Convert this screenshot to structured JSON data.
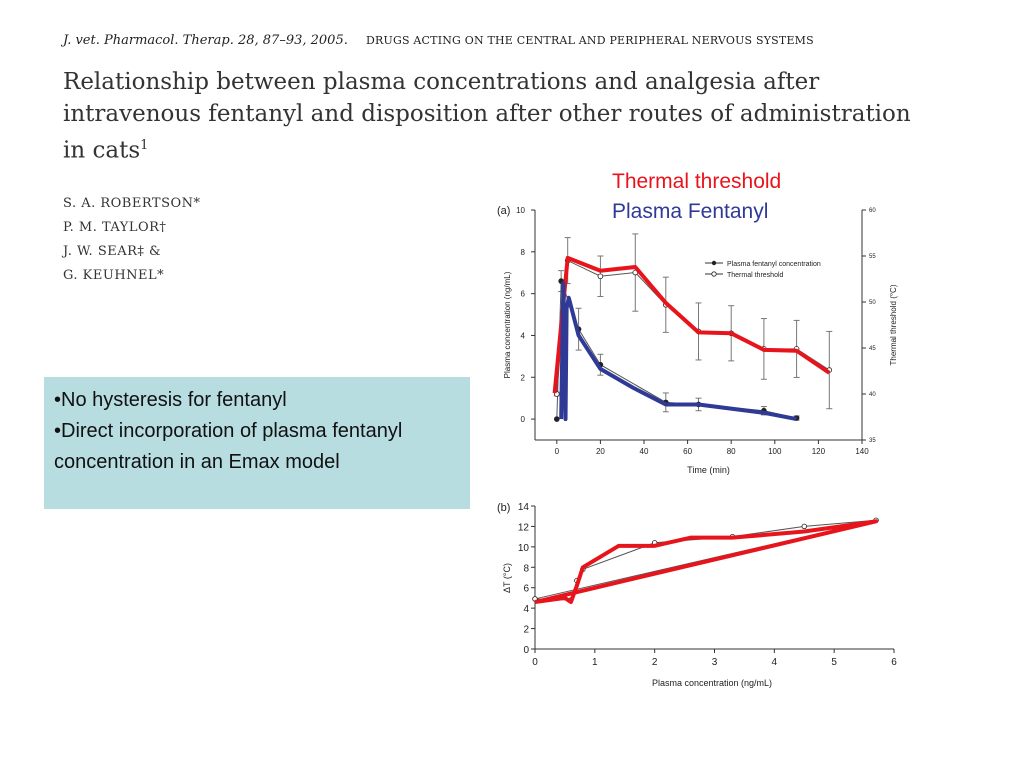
{
  "header": {
    "citation": "J. vet. Pharmacol. Therap. 28, 87–93, 2005.",
    "section": "DRUGS ACTING ON THE CENTRAL AND PERIPHERAL NERVOUS SYSTEMS"
  },
  "paper": {
    "title": "Relationship between plasma concentrations and analgesia after intravenous fentanyl and disposition after other routes of administration in cats",
    "title_footnote": "1",
    "authors": [
      "S. A. ROBERTSON*",
      "P. M. TAYLOR†",
      "J. W. SEAR‡ &",
      "G. KEUHNEL*"
    ]
  },
  "notes": {
    "bullets": [
      "•No hysteresis for fentanyl",
      "•Direct incorporation of plasma fentanyl concentration in an Emax model"
    ]
  },
  "legend_overlay": {
    "thermal_label": "Thermal threshold",
    "fentanyl_label": "Plasma Fentanyl",
    "thermal_color": "#e8141c",
    "fentanyl_color": "#2f3a96"
  },
  "chart_data": [
    {
      "type": "line",
      "panel_label": "(a)",
      "xlabel": "Time (min)",
      "ylabel": "Plasma concentration (ng/mL)",
      "y2label": "Thermal threshold (°C)",
      "xlim": [
        -10,
        140
      ],
      "ylim": [
        -1,
        10
      ],
      "y2lim": [
        35,
        60
      ],
      "xticks": [
        0,
        20,
        40,
        60,
        80,
        100,
        120,
        140
      ],
      "yticks": [
        0,
        2,
        4,
        6,
        8,
        10
      ],
      "y2ticks": [
        35,
        40,
        45,
        50,
        55,
        60
      ],
      "legend_position": "top-right",
      "series": [
        {
          "name": "Plasma fentanyl concentration",
          "axis": "left",
          "marker": "filled",
          "x": [
            0,
            2,
            10,
            20,
            50,
            65,
            95,
            110
          ],
          "y": [
            0,
            6.6,
            4.3,
            2.6,
            0.8,
            0.7,
            0.4,
            0.05
          ],
          "err": [
            0,
            0.5,
            1.0,
            0.5,
            0.45,
            0.3,
            0.2,
            0.1
          ]
        },
        {
          "name": "Thermal threshold",
          "axis": "right",
          "marker": "open",
          "x": [
            0,
            5,
            20,
            36,
            50,
            65,
            80,
            95,
            110,
            125
          ],
          "y": [
            40.0,
            54.5,
            52.8,
            53.2,
            49.7,
            46.8,
            46.6,
            44.9,
            44.9,
            42.6
          ],
          "err": [
            0.2,
            2.5,
            2.2,
            4.2,
            3.0,
            3.1,
            3.0,
            3.3,
            3.1,
            4.2
          ]
        }
      ],
      "highlights": [
        {
          "name": "Thermal threshold",
          "axis": "right",
          "color": "#e8141c",
          "x": [
            -1,
            1,
            5,
            20,
            36,
            50,
            65,
            80,
            95,
            110,
            125
          ],
          "y": [
            40.1,
            45,
            54.8,
            53.4,
            53.8,
            49.9,
            46.7,
            46.6,
            44.8,
            44.7,
            42.3
          ]
        },
        {
          "name": "Plasma Fentanyl",
          "axis": "left",
          "color": "#2f3a96",
          "x": [
            2,
            3,
            4,
            4.5,
            5.5,
            10,
            20,
            35,
            50,
            65,
            95,
            110
          ],
          "y": [
            0,
            6.5,
            0,
            5.3,
            5.8,
            4.0,
            2.4,
            1.5,
            0.7,
            0.7,
            0.3,
            0.0
          ]
        }
      ]
    },
    {
      "type": "line",
      "panel_label": "(b)",
      "xlabel": "Plasma concentration (ng/mL)",
      "ylabel": "ΔT (°C)",
      "xlim": [
        0,
        6
      ],
      "ylim": [
        0,
        14
      ],
      "xticks": [
        0,
        1,
        2,
        3,
        4,
        5,
        6
      ],
      "yticks": [
        0,
        2,
        4,
        6,
        8,
        10,
        12,
        14
      ],
      "series": [
        {
          "name": "",
          "x": [
            0,
            0.6,
            0.7,
            0.8,
            2.0,
            3.3,
            4.5,
            5.7,
            0
          ],
          "y": [
            4.9,
            4.8,
            6.7,
            7.8,
            10.4,
            11.0,
            12.0,
            12.6,
            4.9
          ]
        }
      ],
      "highlights": [
        {
          "name": "",
          "color": "#e8141c",
          "x": [
            0,
            0.5,
            0.6,
            0.7,
            0.8,
            1.4,
            2.0,
            2.6,
            3.3,
            4.5,
            5.7,
            0
          ],
          "y": [
            4.6,
            5.0,
            4.6,
            6.2,
            8.0,
            10.1,
            10.1,
            10.9,
            10.9,
            11.5,
            12.5,
            4.6
          ]
        }
      ]
    }
  ]
}
